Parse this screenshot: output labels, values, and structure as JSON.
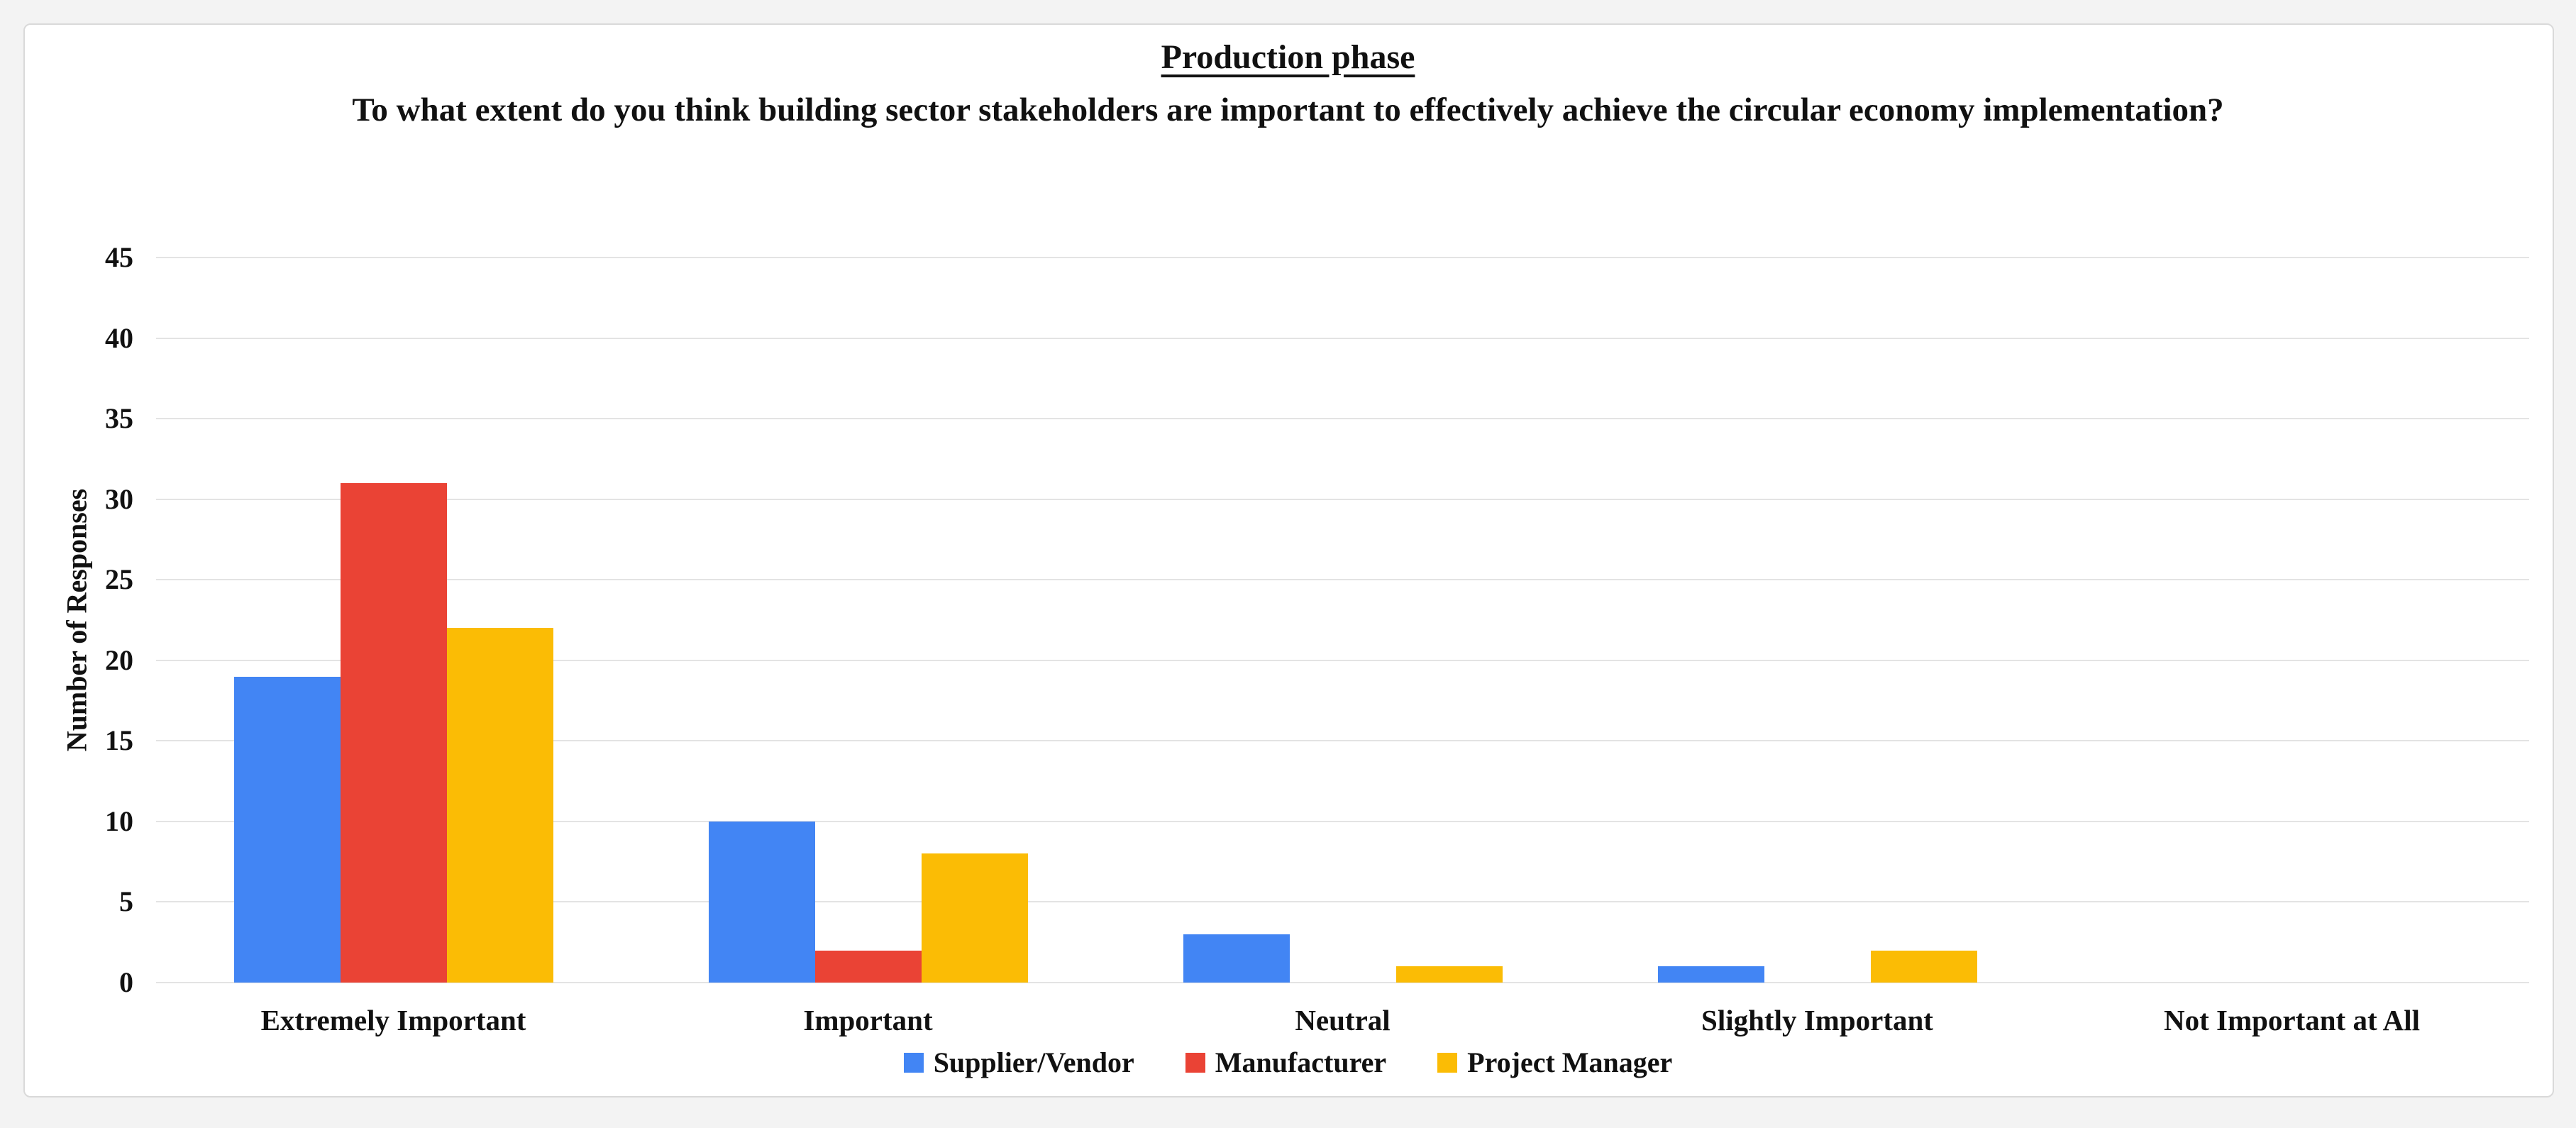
{
  "window": {
    "background": "#f3f3f3",
    "card_background": "#ffffff",
    "card_border": "#d9d9d9"
  },
  "chart_data": {
    "type": "bar",
    "title": "Production phase",
    "subtitle": "To what extent do you think building sector stakeholders are important to effectively achieve the circular economy implementation?",
    "xlabel": "",
    "ylabel": "Number of Responses",
    "ylim": [
      0,
      45
    ],
    "yticks": [
      0,
      5,
      10,
      15,
      20,
      25,
      30,
      35,
      40,
      45
    ],
    "grid": "horizontal",
    "gridline_color": "#e3e3e3",
    "legend_position": "bottom-center",
    "categories": [
      "Extremely Important",
      "Important",
      "Neutral",
      "Slightly Important",
      "Not Important at All"
    ],
    "series": [
      {
        "name": "Supplier/Vendor",
        "color": "#4285F4",
        "values": [
          19,
          10,
          3,
          1,
          0
        ]
      },
      {
        "name": "Manufacturer",
        "color": "#EA4335",
        "values": [
          31,
          2,
          0,
          0,
          0
        ]
      },
      {
        "name": "Project Manager",
        "color": "#FBBC05",
        "values": [
          22,
          8,
          1,
          2,
          0
        ]
      }
    ]
  }
}
